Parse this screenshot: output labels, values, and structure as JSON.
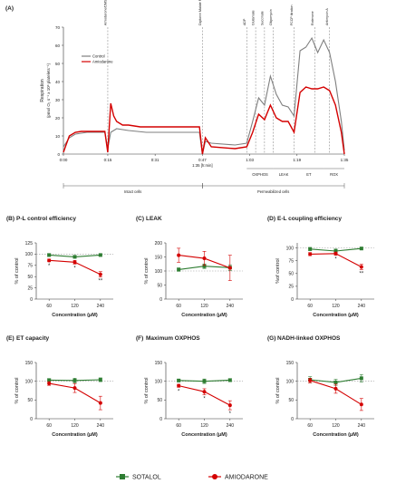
{
  "colors": {
    "control": "#7f7f7f",
    "amiodarone": "#d40000",
    "sotalol": "#2e7d32",
    "axis": "#333333",
    "grid": "#999999"
  },
  "top": {
    "panel_label": "(A)",
    "ylabel_line1": "Respiration",
    "ylabel_line2": "(pmol O₂ s⁻¹ x 10⁸ platelets⁻¹)",
    "y_ticks": [
      "0",
      "10",
      "20",
      "30",
      "40",
      "50",
      "60",
      "70"
    ],
    "x_ticks": [
      "0:00",
      "0:15",
      "0:31",
      "0:47",
      "1:03",
      "1:19",
      "1:35"
    ],
    "x_sublabel": "1:35 [h:min]",
    "legend": [
      "Control",
      "Amiodarone"
    ],
    "events": [
      "Amiodarone/DMSO",
      "Digitonin Malate Pyruvate",
      "ADP",
      "Glutamate",
      "Succinate",
      "Oligomycin",
      "FCCP titration",
      "Rotenone",
      "Antimycin A"
    ],
    "state_labels": [
      "OXPHOS",
      "LEAK",
      "ET",
      "ROX"
    ],
    "cell_labels": [
      "Intact cells",
      "Permeabilized cells"
    ]
  },
  "legend": {
    "sotalol": "SOTALOL",
    "amiodarone": "AMIODARONE"
  },
  "chart_data": [
    {
      "type": "line",
      "panel": "(A)",
      "series": [
        {
          "name": "Control",
          "x": [
            0,
            2,
            4,
            6,
            8,
            10,
            12,
            14,
            15,
            16,
            18,
            22,
            28,
            34,
            40,
            46,
            47,
            48,
            50,
            58,
            62,
            64,
            66,
            68,
            70,
            72,
            74,
            76,
            78,
            80,
            82,
            84,
            86,
            88,
            90,
            92,
            94,
            95
          ],
          "y": [
            4,
            9,
            11,
            11.5,
            12,
            12,
            12,
            12,
            3,
            12,
            14,
            13,
            12,
            12,
            12,
            12,
            0,
            7,
            6,
            5,
            6,
            18,
            31,
            27,
            43,
            33,
            27,
            26,
            21,
            57,
            59,
            64,
            56,
            63,
            56,
            40,
            18,
            2
          ]
        },
        {
          "name": "Amiodarone",
          "x": [
            0,
            2,
            4,
            6,
            8,
            10,
            12,
            14,
            15,
            16,
            17,
            18,
            20,
            22,
            26,
            30,
            40,
            46,
            47,
            48,
            50,
            58,
            62,
            64,
            66,
            68,
            70,
            72,
            74,
            76,
            78,
            80,
            82,
            84,
            86,
            88,
            90,
            92,
            94,
            95
          ],
          "y": [
            1,
            10,
            12,
            12.5,
            12.5,
            12.5,
            12.5,
            12.5,
            1,
            28,
            21,
            18,
            16,
            16,
            15,
            15,
            15,
            15,
            0,
            9,
            4,
            3,
            4,
            12,
            22,
            19,
            27,
            20,
            18,
            18,
            12,
            34,
            37,
            36,
            36,
            37,
            35,
            27,
            12,
            0
          ]
        }
      ],
      "xlabel": "1:35 [h:min]",
      "ylabel": "Respiration (pmol O₂ s⁻¹ x 10⁸ platelets⁻¹)",
      "ylim": [
        0,
        70
      ],
      "xlim": [
        0,
        95
      ],
      "legend_position": "top-left"
    },
    {
      "type": "line",
      "panel": "(B)",
      "title": "P-L control efficiency",
      "categories": [
        "60",
        "120",
        "240"
      ],
      "series": [
        {
          "name": "SOTALOL",
          "values": [
            98,
            94,
            98
          ],
          "errors": [
            3,
            3,
            2
          ]
        },
        {
          "name": "AMIODARONE",
          "values": [
            86,
            82,
            55
          ],
          "errors": [
            3,
            4,
            6
          ]
        }
      ],
      "markers": [
        "*",
        "*",
        "**"
      ],
      "xlabel": "Concentration (μM)",
      "ylabel": "% of control",
      "y_ticks": [
        "0",
        "25",
        "50",
        "75",
        "100",
        "125"
      ],
      "ylim": [
        0,
        125
      ],
      "reference": 100
    },
    {
      "type": "line",
      "panel": "(C)",
      "title": "LEAK",
      "categories": [
        "60",
        "120",
        "240"
      ],
      "series": [
        {
          "name": "SOTALOL",
          "values": [
            105,
            117,
            112
          ],
          "errors": [
            6,
            8,
            10
          ]
        },
        {
          "name": "AMIODARONE",
          "values": [
            156,
            145,
            111
          ],
          "errors": [
            25,
            25,
            45
          ]
        }
      ],
      "markers": [
        "",
        "",
        ""
      ],
      "xlabel": "Concentration (μM)",
      "ylabel": "% of control",
      "y_ticks": [
        "0",
        "50",
        "100",
        "150",
        "200"
      ],
      "ylim": [
        0,
        200
      ],
      "reference": 100
    },
    {
      "type": "line",
      "panel": "(D)",
      "title": "E-L coupling efficiency",
      "categories": [
        "60",
        "120",
        "240"
      ],
      "series": [
        {
          "name": "SOTALOL",
          "values": [
            98,
            94,
            99
          ],
          "errors": [
            3,
            4,
            2
          ]
        },
        {
          "name": "AMIODARONE",
          "values": [
            88,
            89,
            63
          ],
          "errors": [
            3,
            3,
            5
          ]
        }
      ],
      "markers": [
        "",
        "*",
        "**"
      ],
      "xlabel": "Concentration (μM)",
      "ylabel": "%of control",
      "y_ticks": [
        "0",
        "25",
        "50",
        "75",
        "100"
      ],
      "ylim": [
        0,
        110
      ],
      "reference": 100
    },
    {
      "type": "line",
      "panel": "(E)",
      "title": "ET capacity",
      "categories": [
        "60",
        "120",
        "240"
      ],
      "series": [
        {
          "name": "SOTALOL",
          "values": [
            103,
            102,
            104
          ],
          "errors": [
            4,
            6,
            5
          ]
        },
        {
          "name": "AMIODARONE",
          "values": [
            94,
            82,
            42
          ],
          "errors": [
            5,
            12,
            18
          ]
        }
      ],
      "markers": [
        "",
        "",
        ""
      ],
      "xlabel": "Concentration (μM)",
      "ylabel": "% of control",
      "y_ticks": [
        "0",
        "50",
        "100",
        "150"
      ],
      "ylim": [
        0,
        150
      ],
      "reference": 100
    },
    {
      "type": "line",
      "panel": "(F)",
      "title": "Maximum OXPHOS",
      "categories": [
        "60",
        "120",
        "240"
      ],
      "series": [
        {
          "name": "SOTALOL",
          "values": [
            102,
            100,
            103
          ],
          "errors": [
            3,
            6,
            4
          ]
        },
        {
          "name": "AMIODARONE",
          "values": [
            88,
            72,
            36
          ],
          "errors": [
            4,
            8,
            12
          ]
        }
      ],
      "markers": [
        "*",
        "*",
        "*"
      ],
      "xlabel": "Concentration (μM)",
      "ylabel": "% of control",
      "y_ticks": [
        "0",
        "50",
        "100",
        "150"
      ],
      "ylim": [
        0,
        150
      ],
      "reference": 100
    },
    {
      "type": "line",
      "panel": "(G)",
      "title": "NADH-linked OXPHOS",
      "categories": [
        "60",
        "120",
        "240"
      ],
      "series": [
        {
          "name": "SOTALOL",
          "values": [
            104,
            97,
            108
          ],
          "errors": [
            8,
            8,
            10
          ]
        },
        {
          "name": "AMIODARONE",
          "values": [
            102,
            80,
            38
          ],
          "errors": [
            6,
            12,
            16
          ]
        }
      ],
      "markers": [
        "",
        "",
        ""
      ],
      "xlabel": "Concentration (μM)",
      "ylabel": "% of control",
      "y_ticks": [
        "0",
        "50",
        "100",
        "150"
      ],
      "ylim": [
        0,
        150
      ],
      "reference": 100
    }
  ]
}
